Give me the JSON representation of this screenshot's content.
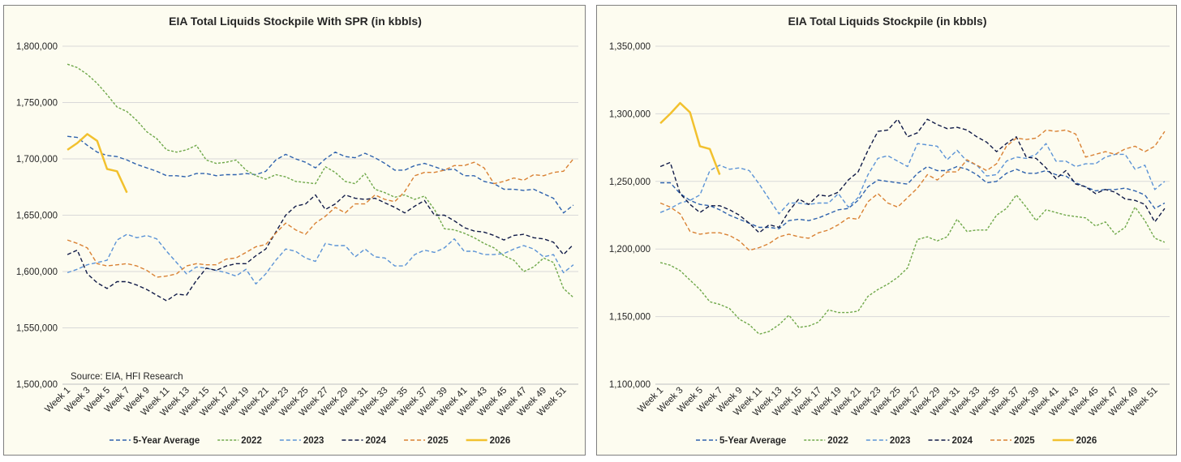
{
  "colors": {
    "5-Year Average": "#2e62ad",
    "2022": "#6fa84a",
    "2023": "#5b93d6",
    "2024": "#101a47",
    "2025": "#d98133",
    "2026": "#f2c12e"
  },
  "chart_data": [
    {
      "type": "line",
      "title": "EIA Total Liquids Stockpile With SPR (in kbbls)",
      "source": "Source: EIA, HFI Research",
      "ylim": [
        1500000,
        1800000
      ],
      "y_ticks": [
        "1,500,000",
        "1,550,000",
        "1,600,000",
        "1,650,000",
        "1,700,000",
        "1,750,000",
        "1,800,000"
      ],
      "y_tick_values": [
        1500000,
        1550000,
        1600000,
        1650000,
        1700000,
        1750000,
        1800000
      ],
      "x_tick_labels": [
        "Week 1",
        "Week 3",
        "Week 5",
        "Week 7",
        "Week 9",
        "Week 11",
        "Week 13",
        "Week 15",
        "Week 17",
        "Week 19",
        "Week 21",
        "Week 23",
        "Week 25",
        "Week 27",
        "Week 29",
        "Week 31",
        "Week 33",
        "Week 35",
        "Week 37",
        "Week 39",
        "Week 41",
        "Week 43",
        "Week 45",
        "Week 47",
        "Week 49",
        "Week 51"
      ],
      "legend": [
        "5-Year Average",
        "2022",
        "2023",
        "2024",
        "2025",
        "2026"
      ],
      "grid": true,
      "legend_position": "bottom",
      "series": [
        {
          "name": "5-Year Average",
          "dash": "dash",
          "values": [
            1720000,
            1719000,
            1712000,
            1706000,
            1703000,
            1702000,
            1699000,
            1695000,
            1692000,
            1689000,
            1685000,
            1685000,
            1684000,
            1687000,
            1687000,
            1685000,
            1686000,
            1686000,
            1687000,
            1686000,
            1689000,
            1699000,
            1704000,
            1700000,
            1697000,
            1692000,
            1700000,
            1706000,
            1702000,
            1701000,
            1705000,
            1701000,
            1696000,
            1690000,
            1690000,
            1694000,
            1696000,
            1693000,
            1690000,
            1691000,
            1685000,
            1685000,
            1680000,
            1678000,
            1673000,
            1673000,
            1672000,
            1673000,
            1669000,
            1665000,
            1652000,
            1659000
          ]
        },
        {
          "name": "2022",
          "dash": "dashfine",
          "values": [
            1784000,
            1781000,
            1775000,
            1767000,
            1757000,
            1746000,
            1742000,
            1734000,
            1724000,
            1718000,
            1708000,
            1706000,
            1708000,
            1712000,
            1699000,
            1696000,
            1697000,
            1699000,
            1690000,
            1685000,
            1682000,
            1686000,
            1684000,
            1680000,
            1679000,
            1678000,
            1693000,
            1688000,
            1680000,
            1678000,
            1687000,
            1673000,
            1670000,
            1666000,
            1668000,
            1664000,
            1667000,
            1655000,
            1638000,
            1637000,
            1634000,
            1630000,
            1625000,
            1621000,
            1614000,
            1610000,
            1600000,
            1604000,
            1612000,
            1608000,
            1585000,
            1577000
          ]
        },
        {
          "name": "2023",
          "dash": "dash",
          "values": [
            1599000,
            1602000,
            1606000,
            1608000,
            1610000,
            1628000,
            1633000,
            1630000,
            1632000,
            1629000,
            1618000,
            1608000,
            1598000,
            1604000,
            1603000,
            1601000,
            1599000,
            1596000,
            1602000,
            1589000,
            1598000,
            1610000,
            1620000,
            1618000,
            1612000,
            1609000,
            1625000,
            1623000,
            1623000,
            1613000,
            1620000,
            1613000,
            1612000,
            1605000,
            1605000,
            1615000,
            1619000,
            1617000,
            1621000,
            1629000,
            1618000,
            1618000,
            1615000,
            1615000,
            1616000,
            1620000,
            1623000,
            1620000,
            1613000,
            1615000,
            1599000,
            1606000
          ]
        },
        {
          "name": "2024",
          "dash": "dash",
          "values": [
            1615000,
            1619000,
            1598000,
            1590000,
            1585000,
            1591000,
            1591000,
            1588000,
            1584000,
            1579000,
            1574000,
            1580000,
            1579000,
            1592000,
            1603000,
            1601000,
            1605000,
            1607000,
            1607000,
            1614000,
            1620000,
            1635000,
            1650000,
            1658000,
            1660000,
            1668000,
            1655000,
            1660000,
            1668000,
            1665000,
            1664000,
            1665000,
            1661000,
            1657000,
            1652000,
            1658000,
            1663000,
            1650000,
            1650000,
            1645000,
            1639000,
            1636000,
            1635000,
            1632000,
            1628000,
            1632000,
            1633000,
            1630000,
            1629000,
            1626000,
            1615000,
            1624000
          ]
        },
        {
          "name": "2025",
          "dash": "dash",
          "values": [
            1628000,
            1625000,
            1621000,
            1607000,
            1605000,
            1606000,
            1607000,
            1605000,
            1601000,
            1595000,
            1596000,
            1598000,
            1605000,
            1607000,
            1606000,
            1606000,
            1611000,
            1612000,
            1617000,
            1622000,
            1624000,
            1634000,
            1643000,
            1637000,
            1633000,
            1643000,
            1649000,
            1657000,
            1652000,
            1660000,
            1660000,
            1668000,
            1664000,
            1662000,
            1671000,
            1685000,
            1688000,
            1688000,
            1690000,
            1694000,
            1694000,
            1697000,
            1692000,
            1678000,
            1680000,
            1683000,
            1681000,
            1686000,
            1685000,
            1688000,
            1689000,
            1700000
          ]
        },
        {
          "name": "2026",
          "dash": "solid",
          "values": [
            1708000,
            1714000,
            1722000,
            1716000,
            1691000,
            1689000,
            1670000
          ]
        }
      ]
    },
    {
      "type": "line",
      "title": "EIA Total Liquids Stockpile (in kbbls)",
      "ylim": [
        1100000,
        1350000
      ],
      "y_ticks": [
        "1,100,000",
        "1,150,000",
        "1,200,000",
        "1,250,000",
        "1,300,000",
        "1,350,000"
      ],
      "y_tick_values": [
        1100000,
        1150000,
        1200000,
        1250000,
        1300000,
        1350000
      ],
      "x_tick_labels": [
        "Week 1",
        "Week 3",
        "Week 5",
        "Week 7",
        "Week 9",
        "Week 11",
        "Week 13",
        "Week 15",
        "Week 17",
        "Week 19",
        "Week 21",
        "Week 23",
        "Week 25",
        "Week 27",
        "Week 29",
        "Week 31",
        "Week 33",
        "Week 35",
        "Week 37",
        "Week 39",
        "Week 41",
        "Week 43",
        "Week 45",
        "Week 47",
        "Week 49",
        "Week 51"
      ],
      "legend": [
        "5-Year Average",
        "2022",
        "2023",
        "2024",
        "2025",
        "2026"
      ],
      "grid": true,
      "legend_position": "bottom",
      "series": [
        {
          "name": "5-Year Average",
          "dash": "dash",
          "values": [
            1249000,
            1249000,
            1241000,
            1236000,
            1233000,
            1232000,
            1229000,
            1225000,
            1222000,
            1219000,
            1216000,
            1216000,
            1215000,
            1221000,
            1222000,
            1221000,
            1223000,
            1226000,
            1229000,
            1230000,
            1236000,
            1246000,
            1251000,
            1250000,
            1249000,
            1248000,
            1256000,
            1261000,
            1258000,
            1258000,
            1261000,
            1259000,
            1255000,
            1249000,
            1250000,
            1256000,
            1259000,
            1256000,
            1256000,
            1258000,
            1255000,
            1254000,
            1249000,
            1246000,
            1243000,
            1244000,
            1244000,
            1245000,
            1243000,
            1240000,
            1230000,
            1234000
          ]
        },
        {
          "name": "2022",
          "dash": "dashfine",
          "values": [
            1190000,
            1188000,
            1184000,
            1177000,
            1170000,
            1161000,
            1159000,
            1156000,
            1148000,
            1144000,
            1137000,
            1139000,
            1144000,
            1151000,
            1142000,
            1143000,
            1146000,
            1155000,
            1153000,
            1153000,
            1154000,
            1165000,
            1170000,
            1174000,
            1179000,
            1186000,
            1207000,
            1209000,
            1206000,
            1209000,
            1222000,
            1213000,
            1214000,
            1214000,
            1225000,
            1230000,
            1240000,
            1231000,
            1221000,
            1229000,
            1227000,
            1225000,
            1224000,
            1223000,
            1217000,
            1220000,
            1211000,
            1216000,
            1231000,
            1221000,
            1208000,
            1205000
          ]
        },
        {
          "name": "2023",
          "dash": "dash",
          "values": [
            1227000,
            1230000,
            1234000,
            1236000,
            1240000,
            1258000,
            1262000,
            1259000,
            1260000,
            1258000,
            1248000,
            1237000,
            1226000,
            1234000,
            1234000,
            1233000,
            1234000,
            1234000,
            1241000,
            1231000,
            1238000,
            1255000,
            1267000,
            1269000,
            1265000,
            1261000,
            1278000,
            1277000,
            1276000,
            1266000,
            1273000,
            1265000,
            1262000,
            1254000,
            1255000,
            1265000,
            1268000,
            1267000,
            1270000,
            1278000,
            1265000,
            1265000,
            1261000,
            1263000,
            1263000,
            1268000,
            1270000,
            1270000,
            1259000,
            1262000,
            1244000,
            1250000
          ]
        },
        {
          "name": "2024",
          "dash": "dash",
          "values": [
            1261000,
            1264000,
            1241000,
            1233000,
            1227000,
            1232000,
            1232000,
            1229000,
            1225000,
            1219000,
            1212000,
            1218000,
            1216000,
            1228000,
            1237000,
            1233000,
            1240000,
            1239000,
            1242000,
            1251000,
            1257000,
            1273000,
            1287000,
            1288000,
            1296000,
            1283000,
            1286000,
            1296000,
            1292000,
            1289000,
            1290000,
            1288000,
            1283000,
            1279000,
            1272000,
            1278000,
            1283000,
            1268000,
            1267000,
            1260000,
            1252000,
            1258000,
            1248000,
            1246000,
            1241000,
            1244000,
            1242000,
            1237000,
            1236000,
            1233000,
            1220000,
            1230000
          ]
        },
        {
          "name": "2025",
          "dash": "dash",
          "values": [
            1234000,
            1231000,
            1226000,
            1213000,
            1211000,
            1212000,
            1212000,
            1210000,
            1206000,
            1199000,
            1201000,
            1204000,
            1209000,
            1211000,
            1209000,
            1208000,
            1212000,
            1214000,
            1218000,
            1223000,
            1222000,
            1235000,
            1241000,
            1234000,
            1231000,
            1238000,
            1245000,
            1255000,
            1251000,
            1257000,
            1257000,
            1266000,
            1262000,
            1258000,
            1263000,
            1276000,
            1282000,
            1281000,
            1282000,
            1288000,
            1287000,
            1288000,
            1285000,
            1268000,
            1270000,
            1272000,
            1270000,
            1274000,
            1276000,
            1272000,
            1276000,
            1287000
          ]
        },
        {
          "name": "2026",
          "dash": "solid",
          "values": [
            1293000,
            1300000,
            1308000,
            1301000,
            1276000,
            1274000,
            1255000
          ]
        }
      ]
    }
  ]
}
